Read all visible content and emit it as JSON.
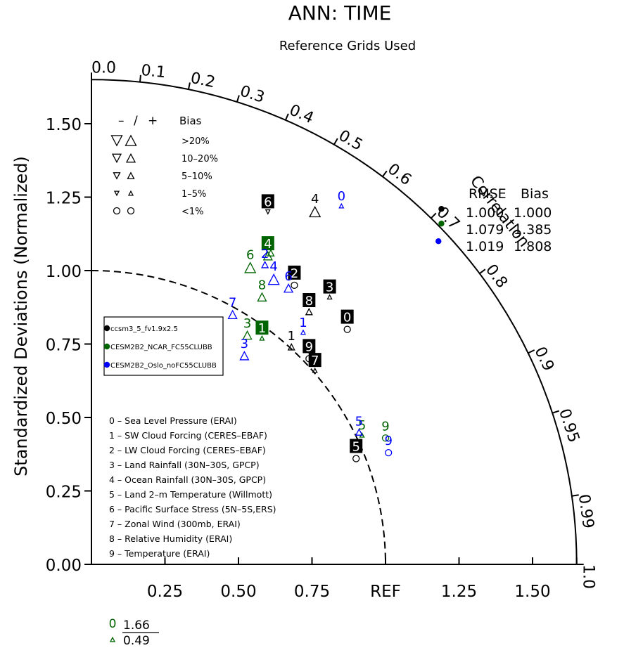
{
  "chart_data": {
    "type": "scatter",
    "subtype": "taylor-diagram",
    "title": "ANN: TIME",
    "subtitle": "Reference Grids Used",
    "ylabel": "Standardized Deviations (Normalized)",
    "correlation_label": "Correlation",
    "ref_label": "REF",
    "radius_max": 1.65,
    "x_tick_labels": [
      "0.25",
      "0.50",
      "0.75",
      "REF",
      "1.25",
      "1.50"
    ],
    "x_tick_values": [
      0.25,
      0.5,
      0.75,
      1.0,
      1.25,
      1.5
    ],
    "y_tick_labels": [
      "0.00",
      "0.25",
      "0.50",
      "0.75",
      "1.00",
      "1.25",
      "1.50"
    ],
    "y_tick_values": [
      0,
      0.25,
      0.5,
      0.75,
      1.0,
      1.25,
      1.5
    ],
    "corr_tick_labels": [
      "0.0",
      "0.1",
      "0.2",
      "0.3",
      "0.4",
      "0.5",
      "0.6",
      "0.7",
      "0.8",
      "0.9",
      "0.95",
      "0.99",
      "1.0"
    ],
    "corr_tick_values": [
      0.0,
      0.1,
      0.2,
      0.3,
      0.4,
      0.5,
      0.6,
      0.7,
      0.8,
      0.9,
      0.95,
      0.99,
      1.0
    ],
    "bias_legend": {
      "header": [
        "–",
        "/",
        "+",
        "Bias"
      ],
      "rows": [
        {
          "label": ">20%",
          "size": 15
        },
        {
          "label": "10–20%",
          "size": 12
        },
        {
          "label": "5–10%",
          "size": 9
        },
        {
          "label": "1–5%",
          "size": 6
        },
        {
          "label": "<1%",
          "size": 0
        }
      ]
    },
    "summary": {
      "header": [
        "RMSE",
        "Bias"
      ],
      "rows": [
        {
          "rmse": "1.000",
          "bias": "1.000"
        },
        {
          "rmse": "1.079",
          "bias": "1.385"
        },
        {
          "rmse": "1.019",
          "bias": "1.808"
        }
      ]
    },
    "variables": [
      "0 – Sea Level Pressure (ERAI)",
      "1 – SW Cloud Forcing (CERES–EBAF)",
      "2 – LW Cloud Forcing (CERES–EBAF)",
      "3 – Land Rainfall (30N–30S, GPCP)",
      "4 – Ocean Rainfall (30N–30S, GPCP)",
      "5 – Land 2–m Temperature (Willmott)",
      "6 – Pacific Surface Stress (5N–5S,ERS)",
      "7 – Zonal Wind (300mb, ERAI)",
      "8 – Relative Humidity (ERAI)",
      "9 – Temperature (ERAI)"
    ],
    "series": [
      {
        "name": "ccsm3_5_fv1.9x2.5",
        "color": "#000000",
        "summary_point": {
          "x": 1.19,
          "y": 1.21
        },
        "points": [
          {
            "label": "0",
            "x": 0.87,
            "y": 0.8,
            "marker": "circle",
            "size": 0,
            "highlight": true
          },
          {
            "label": "1",
            "x": 0.68,
            "y": 0.74,
            "marker": "up",
            "size": 9,
            "highlight": false
          },
          {
            "label": "2",
            "x": 0.69,
            "y": 0.95,
            "marker": "circle",
            "size": 0,
            "highlight": true
          },
          {
            "label": "3",
            "x": 0.81,
            "y": 0.91,
            "marker": "up",
            "size": 6,
            "highlight": true
          },
          {
            "label": "4",
            "x": 0.76,
            "y": 1.2,
            "marker": "up",
            "size": 15,
            "highlight": false
          },
          {
            "label": "5",
            "x": 0.9,
            "y": 0.36,
            "marker": "circle",
            "size": 0,
            "highlight": true
          },
          {
            "label": "6",
            "x": 0.6,
            "y": 1.2,
            "marker": "down",
            "size": 6,
            "highlight": true
          },
          {
            "label": "7",
            "x": 0.76,
            "y": 0.66,
            "marker": "up",
            "size": 6,
            "highlight": true
          },
          {
            "label": "8",
            "x": 0.74,
            "y": 0.86,
            "marker": "up",
            "size": 9,
            "highlight": true
          },
          {
            "label": "9",
            "x": 0.74,
            "y": 0.7,
            "marker": "circle",
            "size": 0,
            "highlight": true
          }
        ]
      },
      {
        "name": "CESM2B2_NCAR_FC55CLUBB",
        "color": "#006400",
        "summary_point": {
          "x": 1.19,
          "y": 1.16
        },
        "points": [
          {
            "label": "1",
            "x": 0.58,
            "y": 0.77,
            "marker": "up",
            "size": 6,
            "highlight": true
          },
          {
            "label": "2",
            "x": 0.61,
            "y": 1.06,
            "marker": "up",
            "size": 9,
            "highlight": false
          },
          {
            "label": "3",
            "x": 0.53,
            "y": 0.78,
            "marker": "up",
            "size": 12,
            "highlight": false
          },
          {
            "label": "4",
            "x": 0.6,
            "y": 1.05,
            "marker": "up",
            "size": 12,
            "highlight": true
          },
          {
            "label": "5",
            "x": 0.92,
            "y": 0.44,
            "marker": "up",
            "size": 6,
            "highlight": false
          },
          {
            "label": "6",
            "x": 0.54,
            "y": 1.01,
            "marker": "up",
            "size": 15,
            "highlight": false
          },
          {
            "label": "8",
            "x": 0.58,
            "y": 0.91,
            "marker": "up",
            "size": 12,
            "highlight": false
          },
          {
            "label": "9",
            "x": 1.0,
            "y": 0.43,
            "marker": "circle",
            "size": 0,
            "highlight": false
          }
        ]
      },
      {
        "name": "CESM2B2_Oslo_noFC55CLUBB",
        "color": "#0000ff",
        "summary_point": {
          "x": 1.18,
          "y": 1.1
        },
        "points": [
          {
            "label": "0",
            "x": 0.85,
            "y": 1.22,
            "marker": "up",
            "size": 6,
            "highlight": false
          },
          {
            "label": "1",
            "x": 0.72,
            "y": 0.79,
            "marker": "up",
            "size": 6,
            "highlight": false
          },
          {
            "label": "2",
            "x": 0.59,
            "y": 1.02,
            "marker": "up",
            "size": 9,
            "highlight": false
          },
          {
            "label": "3",
            "x": 0.52,
            "y": 0.71,
            "marker": "up",
            "size": 12,
            "highlight": false
          },
          {
            "label": "4",
            "x": 0.62,
            "y": 0.97,
            "marker": "up",
            "size": 15,
            "highlight": false
          },
          {
            "label": "5",
            "x": 0.91,
            "y": 0.45,
            "marker": "up",
            "size": 9,
            "highlight": false
          },
          {
            "label": "6",
            "x": 0.67,
            "y": 0.94,
            "marker": "up",
            "size": 12,
            "highlight": false
          },
          {
            "label": "7",
            "x": 0.48,
            "y": 0.85,
            "marker": "up",
            "size": 12,
            "highlight": false
          },
          {
            "label": "9",
            "x": 1.01,
            "y": 0.38,
            "marker": "circle",
            "size": 0,
            "highlight": false
          }
        ]
      }
    ],
    "outlier": {
      "label": "0",
      "color": "#006400",
      "numerator": "1.66",
      "denominator": "0.49"
    }
  }
}
